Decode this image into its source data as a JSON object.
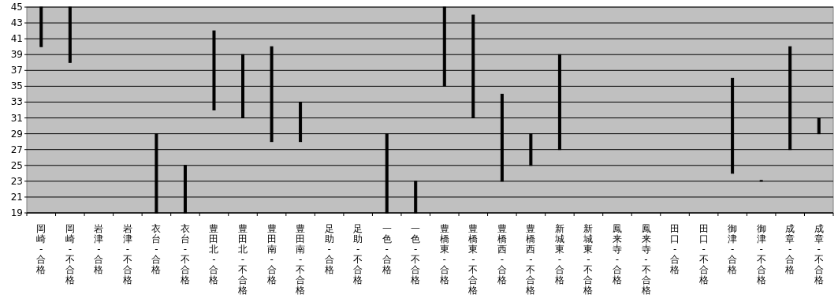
{
  "chart_data": {
    "type": "bar",
    "categories": [
      "岡崎-合格",
      "岡崎-不合格",
      "岩津-合格",
      "岩津-不合格",
      "衣台-合格",
      "衣台-不合格",
      "豊田北-合格",
      "豊田北-不合格",
      "豊田南-合格",
      "豊田南-不合格",
      "足助-合格",
      "足助-不合格",
      "一色-合格",
      "一色-不合格",
      "豊橋東-合格",
      "豊橋東-不合格",
      "豊橋西-合格",
      "豊橋西-不合格",
      "新城東-合格",
      "新城東-不合格",
      "鳳来寺-合格",
      "鳳来寺-不合格",
      "田口-合格",
      "田口-不合格",
      "御津-合格",
      "御津-不合格",
      "成章-合格",
      "成章-不合格"
    ],
    "base": [
      40,
      38,
      null,
      null,
      19,
      19,
      32,
      31,
      28,
      28,
      null,
      null,
      19,
      19,
      35,
      31,
      23,
      25,
      27,
      null,
      null,
      null,
      null,
      null,
      24,
      23,
      27,
      29
    ],
    "values": [
      5,
      7,
      null,
      null,
      10,
      6,
      10,
      8,
      12,
      5,
      null,
      null,
      10,
      4,
      10,
      13,
      11,
      4,
      12,
      null,
      null,
      null,
      null,
      null,
      12,
      0.1,
      13,
      2
    ],
    "color": "#000000",
    "ylim": [
      19,
      45
    ],
    "yticks": [
      19,
      21,
      23,
      25,
      27,
      29,
      31,
      33,
      35,
      37,
      39,
      41,
      43,
      45
    ],
    "grid": "y"
  }
}
